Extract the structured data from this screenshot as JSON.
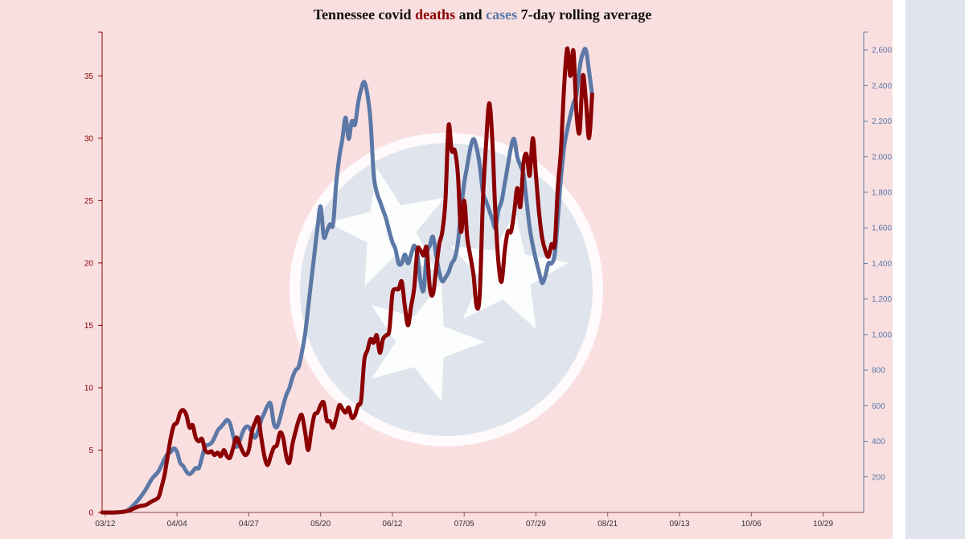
{
  "colors": {
    "background": "#fadfe1",
    "stripe": "#e0e4ec",
    "deaths": "#8b0000",
    "cases": "#5b78a6",
    "emblem": "#e0e4ec"
  },
  "title": {
    "part1": "Tennessee covid ",
    "deaths_word": "deaths",
    "part2": " and ",
    "cases_word": "cases",
    "part3": " 7-day rolling average"
  },
  "chart_data": {
    "type": "line",
    "title": "Tennessee covid deaths and cases 7-day rolling average",
    "x_unit": "days since 03/11",
    "x_range": [
      0,
      244
    ],
    "x_ticks": [
      {
        "x": 1,
        "label": "03/12"
      },
      {
        "x": 24,
        "label": "04/04"
      },
      {
        "x": 47,
        "label": "04/27"
      },
      {
        "x": 70,
        "label": "05/20"
      },
      {
        "x": 93,
        "label": "06/12"
      },
      {
        "x": 116,
        "label": "07/05"
      },
      {
        "x": 139,
        "label": "07/29"
      },
      {
        "x": 162,
        "label": "08/21"
      },
      {
        "x": 185,
        "label": "09/13"
      },
      {
        "x": 208,
        "label": "10/06"
      },
      {
        "x": 231,
        "label": "10/29"
      }
    ],
    "left_axis": {
      "series": "deaths",
      "range": [
        0,
        38.5
      ],
      "ticks": [
        0,
        5,
        10,
        15,
        20,
        25,
        30,
        35
      ]
    },
    "right_axis": {
      "series": "cases",
      "range": [
        0,
        2700
      ],
      "ticks": [
        {
          "v": 200,
          "label": "200"
        },
        {
          "v": 400,
          "label": "400"
        },
        {
          "v": 600,
          "label": "600"
        },
        {
          "v": 800,
          "label": "800"
        },
        {
          "v": 1000,
          "label": "1,000"
        },
        {
          "v": 1200,
          "label": "1,200"
        },
        {
          "v": 1400,
          "label": "1,400"
        },
        {
          "v": 1600,
          "label": "1,600"
        },
        {
          "v": 1800,
          "label": "1,800"
        },
        {
          "v": 2000,
          "label": "2,000"
        },
        {
          "v": 2200,
          "label": "2,200"
        },
        {
          "v": 2400,
          "label": "2,400"
        },
        {
          "v": 2600,
          "label": "2,600"
        }
      ]
    },
    "series": [
      {
        "name": "deaths",
        "axis": "left",
        "points": [
          [
            0,
            0
          ],
          [
            4,
            0
          ],
          [
            8,
            0.1
          ],
          [
            10,
            0.3
          ],
          [
            12,
            0.5
          ],
          [
            14,
            0.6
          ],
          [
            16,
            0.9
          ],
          [
            18,
            1.2
          ],
          [
            19,
            2
          ],
          [
            20,
            3
          ],
          [
            21,
            4.5
          ],
          [
            22,
            6
          ],
          [
            23,
            7
          ],
          [
            24,
            7.2
          ],
          [
            25,
            8
          ],
          [
            26,
            8.2
          ],
          [
            27,
            7.8
          ],
          [
            28,
            6.8
          ],
          [
            29,
            7
          ],
          [
            30,
            6
          ],
          [
            31,
            5.7
          ],
          [
            32,
            5.9
          ],
          [
            33,
            5
          ],
          [
            34,
            4.8
          ],
          [
            35,
            4.9
          ],
          [
            36,
            4.6
          ],
          [
            37,
            4.8
          ],
          [
            38,
            4.5
          ],
          [
            39,
            5
          ],
          [
            40,
            4.5
          ],
          [
            41,
            4.4
          ],
          [
            42,
            5.2
          ],
          [
            43,
            6
          ],
          [
            44,
            5.5
          ],
          [
            45,
            4.9
          ],
          [
            46,
            4.6
          ],
          [
            47,
            5
          ],
          [
            48,
            6.5
          ],
          [
            49,
            7.2
          ],
          [
            50,
            7.6
          ],
          [
            51,
            6
          ],
          [
            52,
            4.5
          ],
          [
            53,
            3.8
          ],
          [
            54,
            4.5
          ],
          [
            55,
            5.2
          ],
          [
            56,
            5.4
          ],
          [
            57,
            6.4
          ],
          [
            58,
            6
          ],
          [
            59,
            4.5
          ],
          [
            60,
            4
          ],
          [
            61,
            5.5
          ],
          [
            62,
            6.5
          ],
          [
            63,
            7.4
          ],
          [
            64,
            7.8
          ],
          [
            65,
            6.5
          ],
          [
            66,
            5
          ],
          [
            67,
            6.5
          ],
          [
            68,
            7.8
          ],
          [
            69,
            8
          ],
          [
            70,
            8.6
          ],
          [
            71,
            8.8
          ],
          [
            72,
            7.4
          ],
          [
            73,
            7.3
          ],
          [
            74,
            6.8
          ],
          [
            75,
            7.6
          ],
          [
            76,
            8.6
          ],
          [
            77,
            8.3
          ],
          [
            78,
            8
          ],
          [
            79,
            8.4
          ],
          [
            80,
            7.6
          ],
          [
            81,
            7.8
          ],
          [
            82,
            8.6
          ],
          [
            83,
            9
          ],
          [
            84,
            12.2
          ],
          [
            85,
            13
          ],
          [
            86,
            13.9
          ],
          [
            87,
            13.6
          ],
          [
            88,
            14.2
          ],
          [
            89,
            12.8
          ],
          [
            90,
            13.9
          ],
          [
            91,
            14.2
          ],
          [
            92,
            14.6
          ],
          [
            93,
            17.5
          ],
          [
            94,
            17.9
          ],
          [
            95,
            17.9
          ],
          [
            96,
            18.5
          ],
          [
            97,
            16.5
          ],
          [
            98,
            15
          ],
          [
            99,
            16.5
          ],
          [
            100,
            18
          ],
          [
            101,
            21
          ],
          [
            102,
            21
          ],
          [
            103,
            20.6
          ],
          [
            104,
            21.2
          ],
          [
            105,
            18
          ],
          [
            106,
            17.5
          ],
          [
            107,
            19.5
          ],
          [
            108,
            21.5
          ],
          [
            109,
            22.5
          ],
          [
            110,
            25
          ],
          [
            111,
            31
          ],
          [
            112,
            29
          ],
          [
            113,
            29
          ],
          [
            114,
            27
          ],
          [
            115,
            22.5
          ],
          [
            116,
            25
          ],
          [
            117,
            22
          ],
          [
            118,
            20.5
          ],
          [
            119,
            19
          ],
          [
            120,
            16.5
          ],
          [
            121,
            17.5
          ],
          [
            122,
            25
          ],
          [
            123,
            29.5
          ],
          [
            124,
            32.8
          ],
          [
            125,
            30
          ],
          [
            126,
            24
          ],
          [
            127,
            20
          ],
          [
            128,
            18.5
          ],
          [
            129,
            21
          ],
          [
            130,
            22.5
          ],
          [
            131,
            22.5
          ],
          [
            132,
            24
          ],
          [
            133,
            26
          ],
          [
            134,
            24.5
          ],
          [
            135,
            28
          ],
          [
            136,
            28.7
          ],
          [
            137,
            27
          ],
          [
            138,
            30
          ],
          [
            139,
            27
          ],
          [
            140,
            24
          ],
          [
            141,
            22
          ],
          [
            142,
            21
          ],
          [
            143,
            20.5
          ],
          [
            144,
            21.5
          ],
          [
            145,
            21.5
          ],
          [
            146,
            26
          ],
          [
            147,
            29
          ],
          [
            148,
            34
          ],
          [
            149,
            37.2
          ],
          [
            150,
            35
          ],
          [
            151,
            37
          ],
          [
            152,
            32
          ],
          [
            153,
            30.5
          ],
          [
            154,
            35
          ],
          [
            155,
            33
          ],
          [
            156,
            30
          ],
          [
            157,
            33.5
          ]
        ]
      },
      {
        "name": "cases",
        "axis": "right",
        "points": [
          [
            0,
            0
          ],
          [
            5,
            0
          ],
          [
            8,
            10
          ],
          [
            10,
            40
          ],
          [
            12,
            80
          ],
          [
            14,
            130
          ],
          [
            16,
            190
          ],
          [
            18,
            230
          ],
          [
            20,
            300
          ],
          [
            21,
            330
          ],
          [
            22,
            340
          ],
          [
            23,
            360
          ],
          [
            24,
            340
          ],
          [
            25,
            280
          ],
          [
            26,
            260
          ],
          [
            27,
            230
          ],
          [
            28,
            215
          ],
          [
            29,
            230
          ],
          [
            30,
            250
          ],
          [
            31,
            250
          ],
          [
            32,
            310
          ],
          [
            33,
            370
          ],
          [
            34,
            380
          ],
          [
            35,
            390
          ],
          [
            36,
            420
          ],
          [
            37,
            460
          ],
          [
            38,
            480
          ],
          [
            39,
            500
          ],
          [
            40,
            520
          ],
          [
            41,
            500
          ],
          [
            42,
            430
          ],
          [
            43,
            370
          ],
          [
            44,
            400
          ],
          [
            45,
            450
          ],
          [
            46,
            480
          ],
          [
            47,
            480
          ],
          [
            48,
            450
          ],
          [
            49,
            420
          ],
          [
            50,
            460
          ],
          [
            51,
            520
          ],
          [
            52,
            560
          ],
          [
            53,
            600
          ],
          [
            54,
            610
          ],
          [
            55,
            500
          ],
          [
            56,
            480
          ],
          [
            57,
            530
          ],
          [
            58,
            600
          ],
          [
            59,
            660
          ],
          [
            60,
            700
          ],
          [
            61,
            760
          ],
          [
            62,
            800
          ],
          [
            63,
            820
          ],
          [
            64,
            900
          ],
          [
            65,
            1000
          ],
          [
            66,
            1150
          ],
          [
            67,
            1300
          ],
          [
            68,
            1450
          ],
          [
            69,
            1600
          ],
          [
            70,
            1720
          ],
          [
            71,
            1550
          ],
          [
            72,
            1580
          ],
          [
            73,
            1620
          ],
          [
            74,
            1620
          ],
          [
            75,
            1850
          ],
          [
            76,
            2000
          ],
          [
            77,
            2100
          ],
          [
            78,
            2220
          ],
          [
            79,
            2100
          ],
          [
            80,
            2200
          ],
          [
            81,
            2180
          ],
          [
            82,
            2300
          ],
          [
            83,
            2380
          ],
          [
            84,
            2420
          ],
          [
            85,
            2350
          ],
          [
            86,
            2200
          ],
          [
            87,
            1900
          ],
          [
            88,
            1800
          ],
          [
            89,
            1750
          ],
          [
            90,
            1700
          ],
          [
            91,
            1650
          ],
          [
            92,
            1580
          ],
          [
            93,
            1520
          ],
          [
            94,
            1480
          ],
          [
            95,
            1400
          ],
          [
            96,
            1400
          ],
          [
            97,
            1450
          ],
          [
            98,
            1400
          ],
          [
            99,
            1450
          ],
          [
            100,
            1500
          ],
          [
            101,
            1450
          ],
          [
            102,
            1300
          ],
          [
            103,
            1250
          ],
          [
            104,
            1450
          ],
          [
            105,
            1500
          ],
          [
            106,
            1550
          ],
          [
            107,
            1450
          ],
          [
            108,
            1350
          ],
          [
            109,
            1300
          ],
          [
            110,
            1320
          ],
          [
            111,
            1350
          ],
          [
            112,
            1400
          ],
          [
            113,
            1430
          ],
          [
            114,
            1520
          ],
          [
            115,
            1700
          ],
          [
            116,
            1850
          ],
          [
            117,
            1950
          ],
          [
            118,
            2050
          ],
          [
            119,
            2100
          ],
          [
            120,
            2050
          ],
          [
            121,
            1950
          ],
          [
            122,
            1800
          ],
          [
            123,
            1750
          ],
          [
            124,
            1700
          ],
          [
            125,
            1650
          ],
          [
            126,
            1600
          ],
          [
            127,
            1700
          ],
          [
            128,
            1750
          ],
          [
            129,
            1850
          ],
          [
            130,
            1950
          ],
          [
            131,
            2050
          ],
          [
            132,
            2100
          ],
          [
            133,
            2000
          ],
          [
            134,
            1950
          ],
          [
            135,
            1900
          ],
          [
            136,
            1750
          ],
          [
            137,
            1600
          ],
          [
            138,
            1500
          ],
          [
            139,
            1420
          ],
          [
            140,
            1350
          ],
          [
            141,
            1290
          ],
          [
            142,
            1330
          ],
          [
            143,
            1400
          ],
          [
            144,
            1400
          ],
          [
            145,
            1450
          ],
          [
            146,
            1650
          ],
          [
            147,
            1880
          ],
          [
            148,
            2050
          ],
          [
            149,
            2150
          ],
          [
            150,
            2230
          ],
          [
            151,
            2300
          ],
          [
            152,
            2350
          ],
          [
            153,
            2500
          ],
          [
            154,
            2580
          ],
          [
            155,
            2600
          ],
          [
            156,
            2480
          ],
          [
            157,
            2350
          ]
        ]
      }
    ]
  }
}
